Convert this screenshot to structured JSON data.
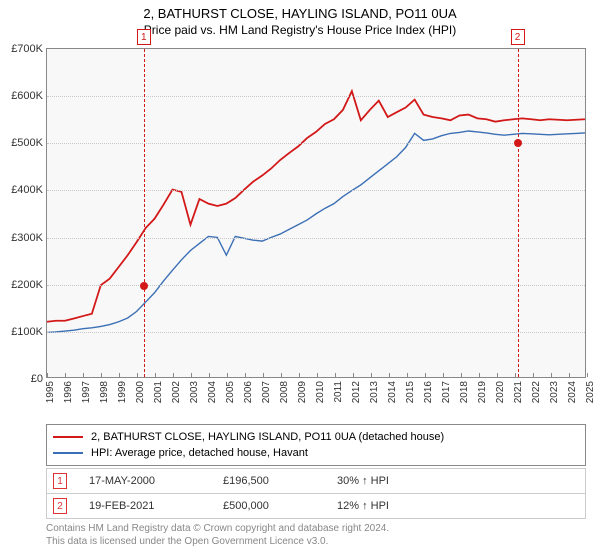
{
  "title_line1": "2, BATHURST CLOSE, HAYLING ISLAND, PO11 0UA",
  "title_line2": "Price paid vs. HM Land Registry's House Price Index (HPI)",
  "chart": {
    "type": "line",
    "background_color": "#f8f8f8",
    "border_color": "#888888",
    "grid_color": "#c8c8c8",
    "x_years_start": 1995,
    "x_years_end": 2025,
    "ylim": [
      0,
      700
    ],
    "ytick_step": 100,
    "y_prefix": "£",
    "y_suffix": "K",
    "series": [
      {
        "id": "subject",
        "label": "2, BATHURST CLOSE, HAYLING ISLAND, PO11 0UA (detached house)",
        "color": "#d31818",
        "width": 1.8,
        "points_k": [
          118,
          120,
          120,
          125,
          130,
          135,
          196,
          210,
          235,
          260,
          288,
          318,
          338,
          368,
          400,
          395,
          325,
          380,
          370,
          365,
          370,
          382,
          400,
          417,
          430,
          445,
          463,
          478,
          492,
          510,
          523,
          540,
          550,
          570,
          610,
          548,
          570,
          590,
          555,
          565,
          575,
          592,
          560,
          555,
          552,
          548,
          558,
          560,
          552,
          550,
          545,
          548,
          550,
          552,
          550,
          548,
          550,
          549,
          548,
          549,
          550
        ]
      },
      {
        "id": "hpi",
        "label": "HPI: Average price, detached house, Havant",
        "color": "#3b6fb5",
        "width": 1.4,
        "points_k": [
          95,
          96,
          98,
          100,
          103,
          105,
          108,
          112,
          118,
          126,
          140,
          160,
          180,
          205,
          228,
          250,
          270,
          285,
          300,
          298,
          260,
          300,
          296,
          292,
          290,
          298,
          305,
          315,
          325,
          335,
          348,
          360,
          370,
          385,
          398,
          410,
          425,
          440,
          455,
          470,
          490,
          520,
          505,
          508,
          515,
          520,
          522,
          525,
          523,
          521,
          518,
          516,
          518,
          520,
          519,
          518,
          517,
          518,
          519,
          520,
          521
        ]
      }
    ],
    "events": [
      {
        "n": 1,
        "year": 2000.38,
        "price_k": 196.5
      },
      {
        "n": 2,
        "year": 2021.14,
        "price_k": 500
      }
    ],
    "event_marker_color": "#d31818",
    "event_dot_color": "#d31818"
  },
  "legend": [
    {
      "series": "subject"
    },
    {
      "series": "hpi"
    }
  ],
  "events_table": [
    {
      "n": 1,
      "date": "17-MAY-2000",
      "price": "£196,500",
      "diff": "30% ↑ HPI"
    },
    {
      "n": 2,
      "date": "19-FEB-2021",
      "price": "£500,000",
      "diff": "12% ↑ HPI"
    }
  ],
  "footnote_line1": "Contains HM Land Registry data © Crown copyright and database right 2024.",
  "footnote_line2": "This data is licensed under the Open Government Licence v3.0."
}
